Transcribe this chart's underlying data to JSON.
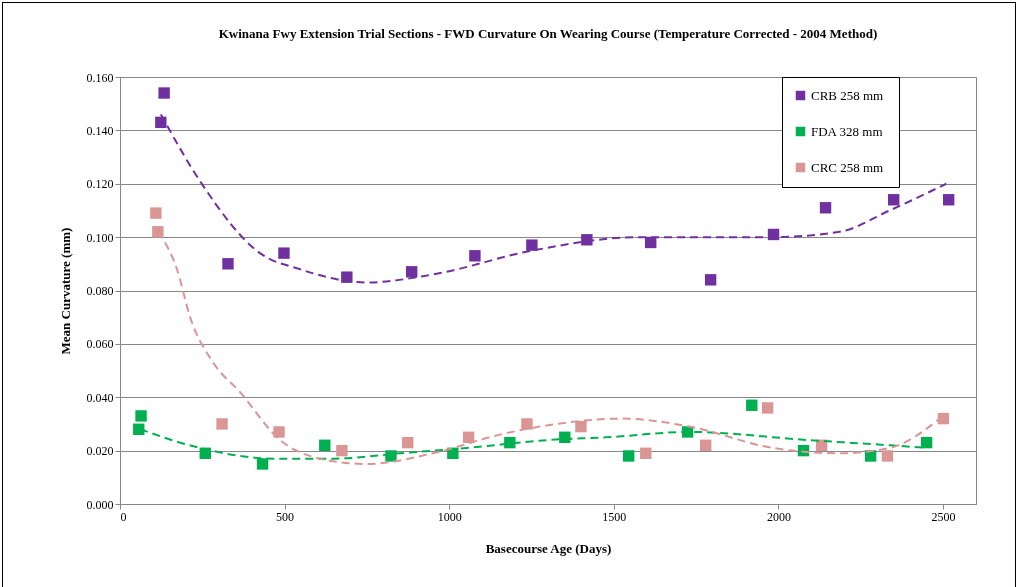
{
  "chart_data": {
    "type": "scatter",
    "title": "Kwinana Fwy Extension Trial Sections - FWD Curvature On Wearing Course (Temperature Corrected - 2004 Method)",
    "xlabel": "Basecourse Age (Days)",
    "ylabel": "Mean Curvature (mm)",
    "xlim": [
      0,
      2600
    ],
    "xticks": [
      0,
      500,
      1000,
      1500,
      2000,
      2500
    ],
    "ylim": [
      0,
      0.16
    ],
    "yticks": [
      {
        "value": 0,
        "label": "0.000"
      },
      {
        "value": 0.02,
        "label": "0.020"
      },
      {
        "value": 0.04,
        "label": "0.040"
      },
      {
        "value": 0.06,
        "label": "0.060"
      },
      {
        "value": 0.08,
        "label": "0.080"
      },
      {
        "value": 0.1,
        "label": "0.100"
      },
      {
        "value": 0.12,
        "label": "0.120"
      },
      {
        "value": 0.14,
        "label": "0.140"
      },
      {
        "value": 0.16,
        "label": "0.160"
      }
    ],
    "grid": "y",
    "legend": "top right",
    "marker": "square",
    "series": [
      {
        "name": "CRB 258 mm",
        "color": "#7030a0",
        "x": [
          134,
          124,
          328,
          498,
          689,
          886,
          1078,
          1251,
          1418,
          1612,
          1794,
          1985,
          2143,
          2350,
          2517
        ],
        "values": [
          0.154,
          0.143,
          0.09,
          0.094,
          0.085,
          0.087,
          0.093,
          0.097,
          0.099,
          0.098,
          0.084,
          0.101,
          0.111,
          0.114,
          0.114
        ]
      },
      {
        "name": "FDA 328 mm",
        "color": "#00b050",
        "x": [
          64,
          57,
          259,
          433,
          622,
          823,
          1011,
          1184,
          1351,
          1545,
          1724,
          1919,
          2076,
          2280,
          2450
        ],
        "values": [
          0.033,
          0.028,
          0.019,
          0.015,
          0.022,
          0.018,
          0.019,
          0.023,
          0.025,
          0.018,
          0.027,
          0.037,
          0.02,
          0.018,
          0.023
        ]
      },
      {
        "name": "CRC  258 mm",
        "color": "#d99694",
        "x": [
          109,
          115,
          310,
          483,
          674,
          874,
          1059,
          1236,
          1400,
          1597,
          1779,
          1967,
          2131,
          2331,
          2501
        ],
        "values": [
          0.109,
          0.102,
          0.03,
          0.027,
          0.02,
          0.023,
          0.025,
          0.03,
          0.029,
          0.019,
          0.022,
          0.036,
          0.022,
          0.018,
          0.032
        ]
      },
      {
        "type": "line",
        "color": "#7030a0",
        "line_style": "dashed",
        "marker": "none",
        "x": [
          124,
          243,
          425,
          546,
          750,
          950,
          1254,
          1579,
          1983,
          2186,
          2338,
          2510
        ],
        "values": [
          0.146,
          0.121,
          0.094,
          0.088,
          0.083,
          0.086,
          0.095,
          0.1,
          0.1,
          0.102,
          0.11,
          0.12
        ]
      },
      {
        "type": "line",
        "color": "#00b050",
        "line_style": "dashed",
        "marker": "none",
        "x": [
          61,
          243,
          466,
          648,
          850,
          1053,
          1305,
          1477,
          1730,
          2085,
          2338,
          2453
        ],
        "values": [
          0.028,
          0.021,
          0.017,
          0.017,
          0.019,
          0.021,
          0.024,
          0.025,
          0.027,
          0.024,
          0.022,
          0.021
        ]
      },
      {
        "type": "line",
        "color": "#d99694",
        "line_style": "dashed",
        "marker": "none",
        "x": [
          115,
          173,
          213,
          283,
          364,
          486,
          607,
          750,
          950,
          1154,
          1275,
          1527,
          1730,
          1983,
          2186,
          2338,
          2490
        ],
        "values": [
          0.102,
          0.088,
          0.07,
          0.053,
          0.042,
          0.024,
          0.017,
          0.015,
          0.019,
          0.026,
          0.029,
          0.032,
          0.029,
          0.021,
          0.019,
          0.021,
          0.032
        ]
      }
    ]
  }
}
